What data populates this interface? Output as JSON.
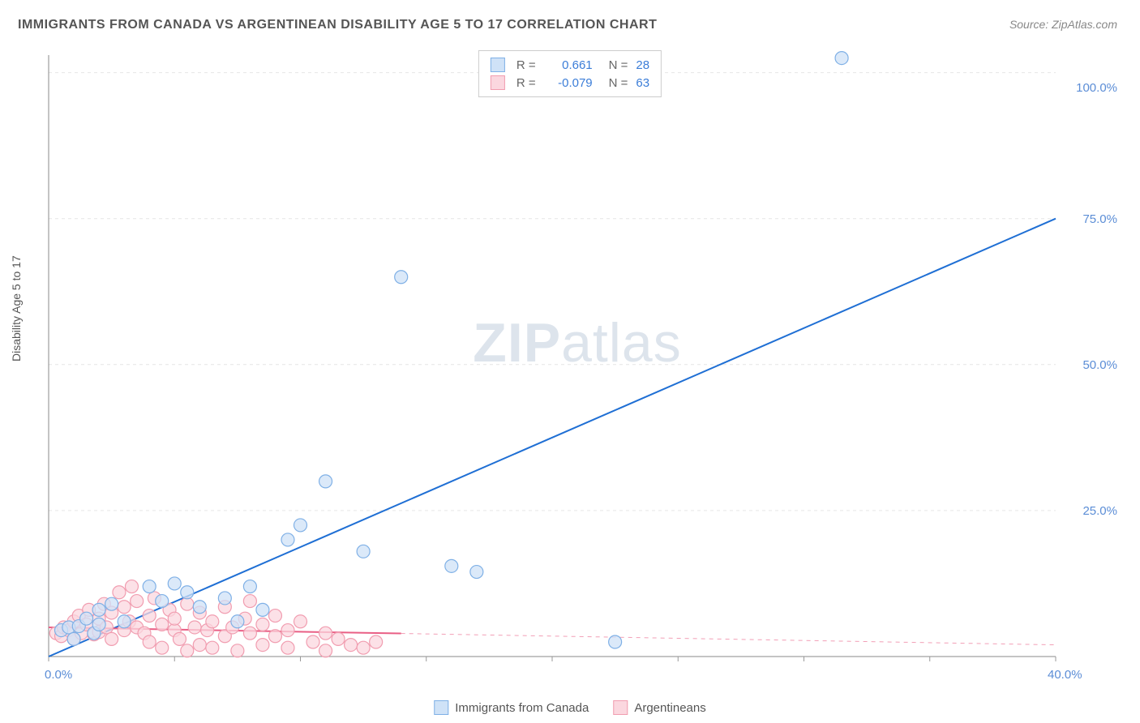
{
  "title": "IMMIGRANTS FROM CANADA VS ARGENTINEAN DISABILITY AGE 5 TO 17 CORRELATION CHART",
  "source": "Source: ZipAtlas.com",
  "watermark": "ZIPatlas",
  "ylabel": "Disability Age 5 to 17",
  "chart": {
    "type": "scatter",
    "background_color": "#ffffff",
    "grid_color": "#e6e6e6",
    "axis_color": "#888888",
    "tick_color": "#999999",
    "xlim": [
      0,
      40
    ],
    "ylim": [
      0,
      103
    ],
    "xtick_step": 5,
    "ytick_step": 25,
    "xlabel_values": [
      "0.0%",
      "40.0%"
    ],
    "ylabel_values": [
      "25.0%",
      "50.0%",
      "75.0%",
      "100.0%"
    ],
    "marker_radius": 8,
    "marker_stroke_width": 1.2,
    "line_width": 2,
    "label_fontsize": 15,
    "title_fontsize": 16
  },
  "series": [
    {
      "name": "Immigrants from Canada",
      "fill_color": "#cfe2f7",
      "stroke_color": "#7fb0e6",
      "line_color": "#1f6fd4",
      "trend": {
        "x1": 0,
        "y1": 0,
        "x2": 40,
        "y2": 75,
        "solid_until_x": 40
      },
      "r": "0.661",
      "n": "28",
      "points": [
        [
          0.5,
          4.5
        ],
        [
          0.8,
          5.0
        ],
        [
          1.0,
          3.0
        ],
        [
          1.2,
          5.2
        ],
        [
          1.5,
          6.5
        ],
        [
          1.8,
          4.0
        ],
        [
          2.0,
          8.0
        ],
        [
          2.0,
          5.5
        ],
        [
          2.5,
          9.0
        ],
        [
          3.0,
          6.0
        ],
        [
          4.0,
          12.0
        ],
        [
          4.5,
          9.5
        ],
        [
          5.0,
          12.5
        ],
        [
          5.5,
          11.0
        ],
        [
          6.0,
          8.5
        ],
        [
          7.0,
          10.0
        ],
        [
          7.5,
          6.0
        ],
        [
          8.0,
          12.0
        ],
        [
          8.5,
          8.0
        ],
        [
          9.5,
          20.0
        ],
        [
          10.0,
          22.5
        ],
        [
          11.0,
          30.0
        ],
        [
          12.5,
          18.0
        ],
        [
          14.0,
          65.0
        ],
        [
          16.0,
          15.5
        ],
        [
          17.0,
          14.5
        ],
        [
          22.5,
          2.5
        ],
        [
          31.5,
          102.5
        ]
      ]
    },
    {
      "name": "Argentineans",
      "fill_color": "#fbd7df",
      "stroke_color": "#f19db0",
      "line_color": "#e95f85",
      "trend": {
        "x1": 0,
        "y1": 5.0,
        "x2": 40,
        "y2": 2.0,
        "solid_until_x": 14
      },
      "r": "-0.079",
      "n": "63",
      "points": [
        [
          0.3,
          4.0
        ],
        [
          0.5,
          3.5
        ],
        [
          0.6,
          5.0
        ],
        [
          0.8,
          4.5
        ],
        [
          1.0,
          6.0
        ],
        [
          1.0,
          3.0
        ],
        [
          1.2,
          7.0
        ],
        [
          1.3,
          4.0
        ],
        [
          1.5,
          5.5
        ],
        [
          1.6,
          8.0
        ],
        [
          1.8,
          3.8
        ],
        [
          2.0,
          6.5
        ],
        [
          2.0,
          4.2
        ],
        [
          2.2,
          9.0
        ],
        [
          2.3,
          5.0
        ],
        [
          2.5,
          3.0
        ],
        [
          2.5,
          7.5
        ],
        [
          2.8,
          11.0
        ],
        [
          3.0,
          4.5
        ],
        [
          3.0,
          8.5
        ],
        [
          3.2,
          6.0
        ],
        [
          3.3,
          12.0
        ],
        [
          3.5,
          5.0
        ],
        [
          3.5,
          9.5
        ],
        [
          3.8,
          4.0
        ],
        [
          4.0,
          7.0
        ],
        [
          4.0,
          2.5
        ],
        [
          4.2,
          10.0
        ],
        [
          4.5,
          5.5
        ],
        [
          4.5,
          1.5
        ],
        [
          4.8,
          8.0
        ],
        [
          5.0,
          4.5
        ],
        [
          5.0,
          6.5
        ],
        [
          5.2,
          3.0
        ],
        [
          5.5,
          9.0
        ],
        [
          5.5,
          1.0
        ],
        [
          5.8,
          5.0
        ],
        [
          6.0,
          7.5
        ],
        [
          6.0,
          2.0
        ],
        [
          6.3,
          4.5
        ],
        [
          6.5,
          6.0
        ],
        [
          6.5,
          1.5
        ],
        [
          7.0,
          8.5
        ],
        [
          7.0,
          3.5
        ],
        [
          7.3,
          5.0
        ],
        [
          7.5,
          1.0
        ],
        [
          7.8,
          6.5
        ],
        [
          8.0,
          4.0
        ],
        [
          8.0,
          9.5
        ],
        [
          8.5,
          2.0
        ],
        [
          8.5,
          5.5
        ],
        [
          9.0,
          3.5
        ],
        [
          9.0,
          7.0
        ],
        [
          9.5,
          1.5
        ],
        [
          9.5,
          4.5
        ],
        [
          10.0,
          6.0
        ],
        [
          10.5,
          2.5
        ],
        [
          11.0,
          4.0
        ],
        [
          11.0,
          1.0
        ],
        [
          11.5,
          3.0
        ],
        [
          12.0,
          2.0
        ],
        [
          12.5,
          1.5
        ],
        [
          13.0,
          2.5
        ]
      ]
    }
  ],
  "legend_bottom": [
    "Immigrants from Canada",
    "Argentineans"
  ]
}
